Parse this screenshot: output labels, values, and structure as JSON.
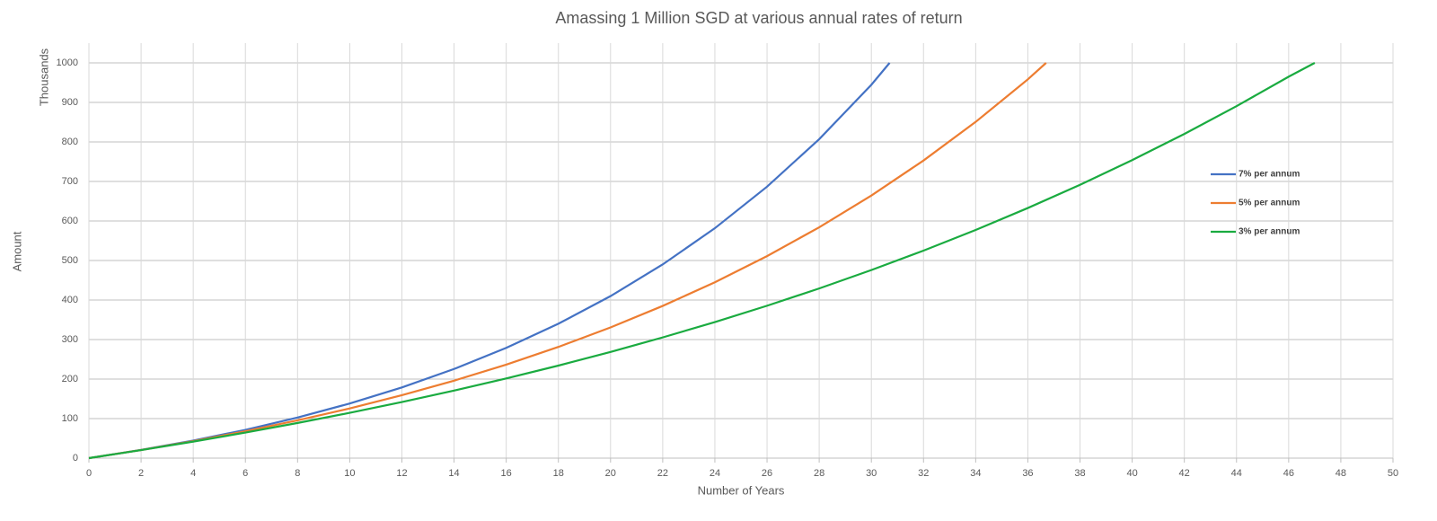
{
  "chart_data": {
    "type": "line",
    "title": "Amassing 1 Million SGD at various annual rates of return",
    "x_label": "Number of Years",
    "y_label": "Amount",
    "display_unit": "Thousands",
    "xlim": [
      0,
      50
    ],
    "ylim": [
      0,
      1050
    ],
    "xticks": [
      0,
      2,
      4,
      6,
      8,
      10,
      12,
      14,
      16,
      18,
      20,
      22,
      24,
      26,
      28,
      30,
      32,
      34,
      36,
      38,
      40,
      42,
      44,
      46,
      48,
      50
    ],
    "yticks": [
      0,
      100,
      200,
      300,
      400,
      500,
      600,
      700,
      800,
      900,
      1000
    ],
    "grid": true,
    "legend": "right",
    "series": [
      {
        "name": "7% per annum",
        "color": "#4472c4",
        "x": [
          0,
          2,
          4,
          6,
          8,
          10,
          12,
          14,
          16,
          18,
          20,
          22,
          24,
          26,
          28,
          30,
          30.7
        ],
        "values": [
          0,
          20.7,
          44.4,
          71.5,
          102.6,
          138.2,
          178.9,
          225.5,
          278.9,
          340.0,
          409.9,
          490.1,
          581.7,
          686.8,
          807.0,
          944.6,
          1000
        ]
      },
      {
        "name": "5% per annum",
        "color": "#ed7d31",
        "x": [
          0,
          2,
          4,
          6,
          8,
          10,
          12,
          14,
          16,
          18,
          20,
          22,
          24,
          26,
          28,
          30,
          32,
          34,
          36,
          36.7
        ],
        "values": [
          0,
          20.5,
          43.1,
          68.0,
          95.5,
          125.8,
          159.2,
          196.0,
          236.6,
          281.3,
          330.7,
          385.1,
          445.0,
          511.1,
          584.0,
          664.4,
          753.0,
          850.7,
          958.4,
          1000
        ]
      },
      {
        "name": "3% per annum",
        "color": "#1aab40",
        "x": [
          0,
          2,
          4,
          6,
          8,
          10,
          12,
          14,
          16,
          18,
          20,
          22,
          24,
          26,
          28,
          30,
          32,
          34,
          36,
          38,
          40,
          42,
          44,
          46,
          47
        ],
        "values": [
          0,
          20.3,
          41.8,
          64.7,
          88.9,
          114.6,
          142.0,
          170.9,
          201.6,
          234.1,
          268.7,
          305.4,
          344.3,
          385.5,
          429.3,
          475.8,
          525.0,
          577.3,
          632.8,
          691.6,
          754.0,
          820.2,
          890.5,
          965.0,
          1000
        ]
      }
    ]
  }
}
